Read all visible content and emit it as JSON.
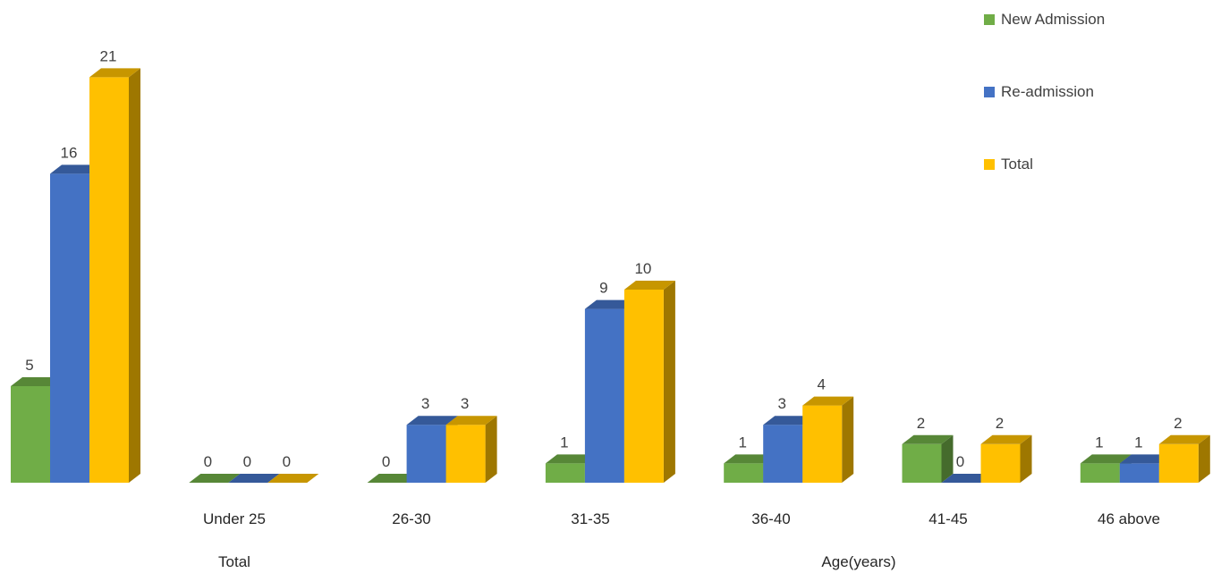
{
  "chart_data": {
    "type": "bar",
    "style": "3d-clustered-column",
    "categories": [
      "",
      "Under 25",
      "26-30",
      "31-35",
      "36-40",
      "41-45",
      "46 above"
    ],
    "group_labels": [
      "Total",
      "Age(years)"
    ],
    "series": [
      {
        "name": "New Admission",
        "color": "#70AD47",
        "values": [
          5,
          0,
          0,
          1,
          1,
          2,
          1
        ]
      },
      {
        "name": "Re-admission",
        "color": "#4472C4",
        "values": [
          16,
          0,
          3,
          9,
          3,
          0,
          1
        ]
      },
      {
        "name": "Total",
        "color": "#FFC000",
        "values": [
          21,
          0,
          3,
          10,
          4,
          2,
          2
        ]
      }
    ],
    "ylim": [
      0,
      21
    ],
    "grid": false,
    "data_labels": true,
    "legend_position": "top-right"
  }
}
